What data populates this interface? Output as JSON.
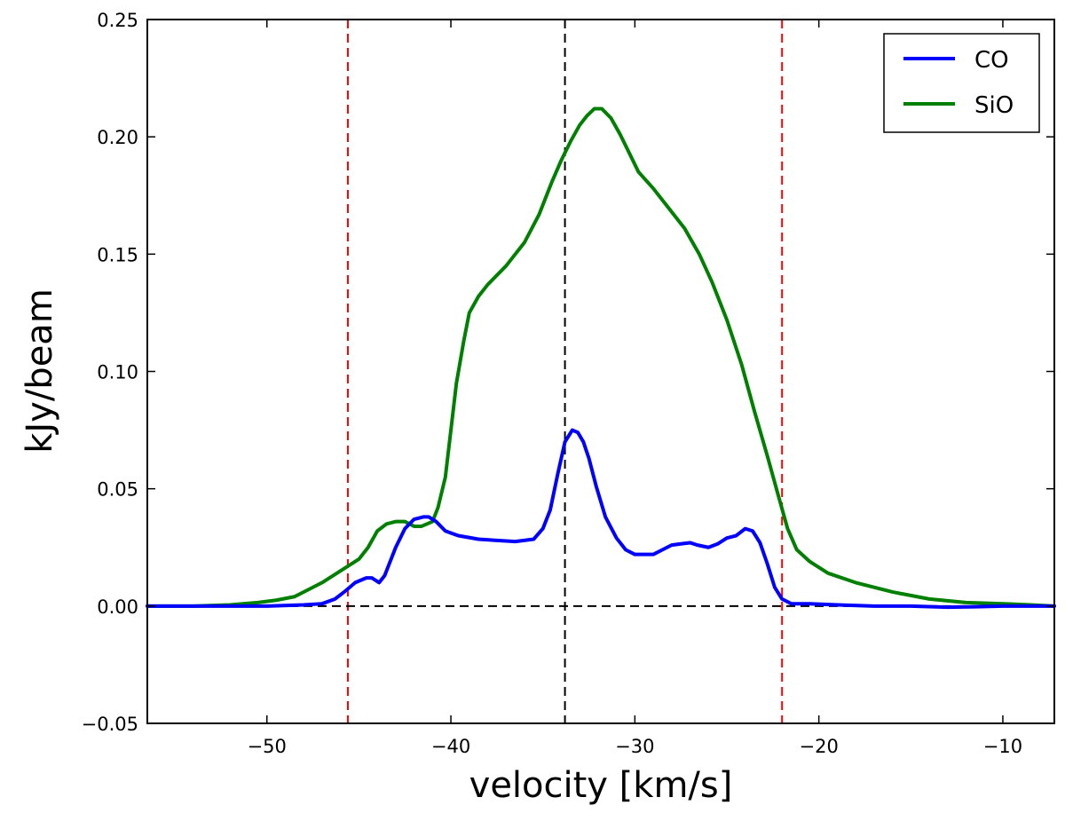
{
  "chart_data": {
    "type": "line",
    "xlabel": "velocity [km/s]",
    "ylabel": "kJy/beam",
    "xlim": [
      -56.5,
      -7.2
    ],
    "ylim": [
      -0.05,
      0.25
    ],
    "xticks": [
      -50,
      -40,
      -30,
      -20,
      -10
    ],
    "xtick_labels": [
      "−50",
      "−40",
      "−30",
      "−20",
      "−10"
    ],
    "yticks": [
      -0.05,
      0.0,
      0.05,
      0.1,
      0.15,
      0.2,
      0.25
    ],
    "ytick_labels": [
      "−0.05",
      "0.00",
      "0.05",
      "0.10",
      "0.15",
      "0.20",
      "0.25"
    ],
    "grid": false,
    "legend_position": "top-right",
    "series": [
      {
        "name": "CO",
        "color": "#0000ff",
        "x": [
          -56.5,
          -54,
          -52,
          -50,
          -48,
          -47,
          -46.3,
          -45.8,
          -45.2,
          -44.6,
          -44.3,
          -43.9,
          -43.6,
          -43,
          -42.5,
          -42,
          -41.5,
          -41.2,
          -40.8,
          -40.3,
          -39.6,
          -38.5,
          -37.5,
          -36.5,
          -35.5,
          -35,
          -34.6,
          -34.2,
          -33.8,
          -33.4,
          -33.1,
          -32.8,
          -32.5,
          -32.1,
          -31.6,
          -31,
          -30.5,
          -30,
          -29.5,
          -29,
          -28.5,
          -28,
          -27.5,
          -27,
          -26.6,
          -26,
          -25.5,
          -25,
          -24.5,
          -24,
          -23.6,
          -23.2,
          -22.8,
          -22.4,
          -22,
          -21.5,
          -20.5,
          -19,
          -17,
          -15,
          -13,
          -11.5,
          -10,
          -8.5,
          -7.2
        ],
        "y": [
          0.0,
          0.0,
          0.0,
          0.0,
          0.0005,
          0.001,
          0.003,
          0.006,
          0.01,
          0.012,
          0.012,
          0.01,
          0.013,
          0.025,
          0.033,
          0.037,
          0.038,
          0.038,
          0.036,
          0.032,
          0.03,
          0.0285,
          0.028,
          0.0275,
          0.0285,
          0.033,
          0.041,
          0.056,
          0.07,
          0.075,
          0.074,
          0.07,
          0.063,
          0.051,
          0.038,
          0.029,
          0.024,
          0.022,
          0.022,
          0.022,
          0.024,
          0.026,
          0.0265,
          0.027,
          0.026,
          0.025,
          0.0265,
          0.029,
          0.03,
          0.033,
          0.032,
          0.027,
          0.018,
          0.008,
          0.003,
          0.001,
          0.001,
          0.0005,
          0.0,
          0.0,
          -0.0005,
          -0.0003,
          0.0,
          0.0,
          0.0
        ]
      },
      {
        "name": "SiO",
        "color": "#008000",
        "x": [
          -56.5,
          -54,
          -52,
          -50.5,
          -49.5,
          -48.5,
          -48,
          -47,
          -46,
          -45,
          -44.5,
          -44,
          -43.5,
          -43,
          -42.5,
          -42,
          -41.6,
          -41.3,
          -41,
          -40.7,
          -40.3,
          -40,
          -39.7,
          -39.3,
          -39,
          -38.5,
          -38,
          -37,
          -36,
          -35.2,
          -34.5,
          -34,
          -33.5,
          -33,
          -32.6,
          -32.2,
          -31.8,
          -31.3,
          -30.8,
          -30.3,
          -29.8,
          -29,
          -28,
          -27.3,
          -26.5,
          -25.8,
          -25,
          -24.2,
          -23.5,
          -22.8,
          -22.2,
          -21.7,
          -21.2,
          -20.5,
          -19.5,
          -18,
          -16,
          -14,
          -12,
          -10,
          -8.5,
          -7.2
        ],
        "y": [
          0.0,
          0.0,
          0.0005,
          0.0015,
          0.0025,
          0.004,
          0.006,
          0.01,
          0.015,
          0.02,
          0.025,
          0.032,
          0.035,
          0.036,
          0.036,
          0.034,
          0.034,
          0.035,
          0.036,
          0.042,
          0.055,
          0.075,
          0.095,
          0.113,
          0.125,
          0.132,
          0.137,
          0.145,
          0.155,
          0.167,
          0.181,
          0.19,
          0.198,
          0.205,
          0.209,
          0.212,
          0.212,
          0.208,
          0.201,
          0.193,
          0.185,
          0.178,
          0.168,
          0.161,
          0.15,
          0.138,
          0.122,
          0.103,
          0.083,
          0.064,
          0.047,
          0.033,
          0.024,
          0.019,
          0.014,
          0.01,
          0.006,
          0.003,
          0.0015,
          0.001,
          0.0005,
          0.0
        ]
      }
    ],
    "reference_lines": [
      {
        "orientation": "vertical",
        "value": -45.6,
        "color": "#ff0000",
        "style": "dashed"
      },
      {
        "orientation": "vertical",
        "value": -33.8,
        "color": "#000000",
        "style": "dashed"
      },
      {
        "orientation": "vertical",
        "value": -22.0,
        "color": "#ff0000",
        "style": "dashed"
      },
      {
        "orientation": "horizontal",
        "value": 0.0,
        "color": "#000000",
        "style": "dashed"
      }
    ]
  }
}
